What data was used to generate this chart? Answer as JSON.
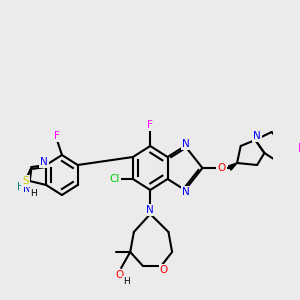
{
  "bg_color": "#ebebeb",
  "bond_color": "#000000",
  "bond_lw": 1.5,
  "font_size": 7.5,
  "atoms": {
    "S": "#cccc00",
    "N": "#0000ff",
    "O": "#ff0000",
    "F": "#ff00ff",
    "Cl": "#00cc00",
    "C": "#000000",
    "H": "#000000"
  }
}
